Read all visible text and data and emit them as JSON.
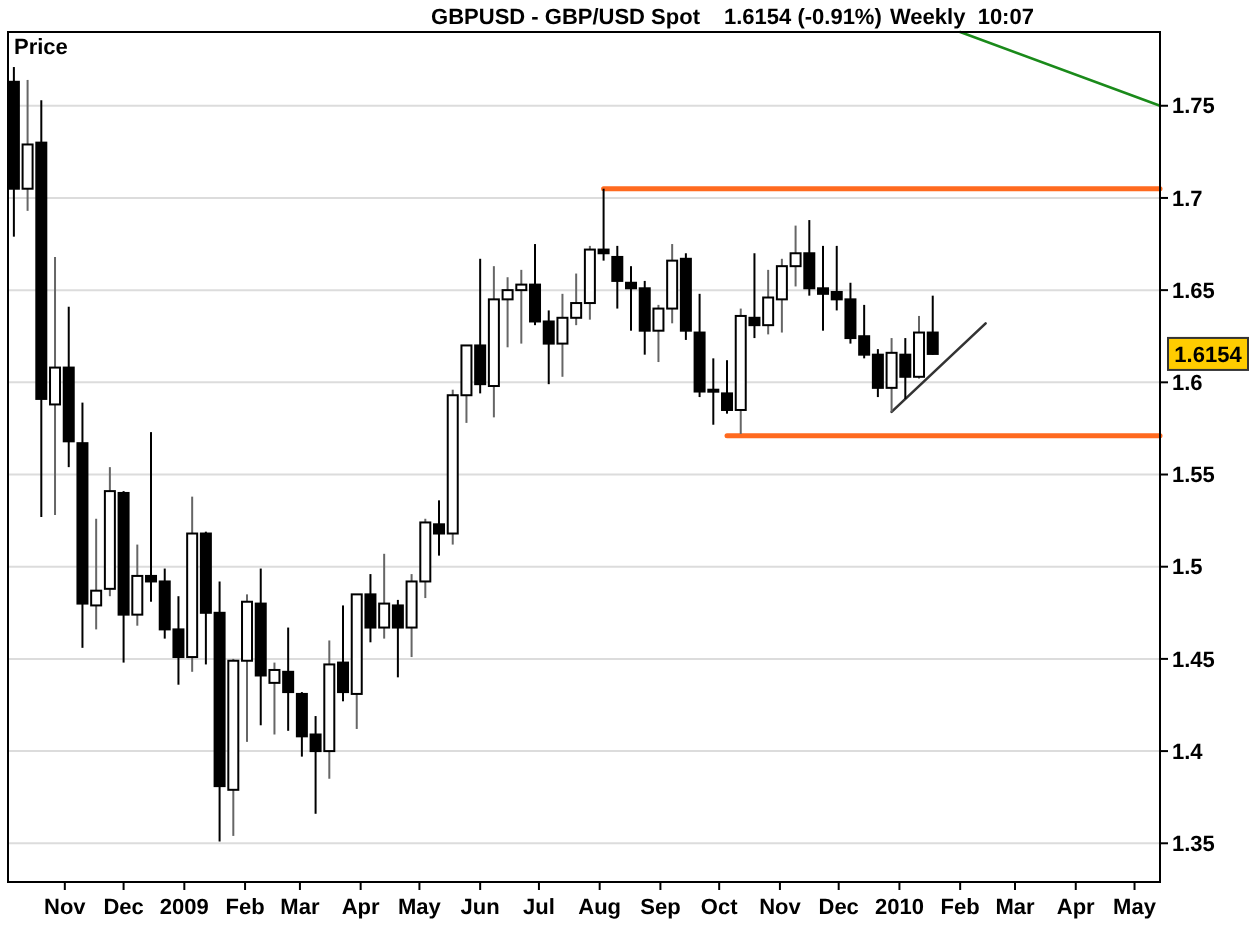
{
  "chart_data": {
    "type": "candlestick",
    "title": "GBPUSD - GBP/USD Spot",
    "subtitle": "1.6154 (-0.91%)",
    "ylabel": "Price",
    "annotations": [
      "Weekly  10:07",
      "1.6154"
    ],
    "x": [
      "2008-10-06",
      "2008-10-13",
      "2008-10-20",
      "2008-10-27",
      "2008-11-03",
      "2008-11-10",
      "2008-11-17",
      "2008-11-24",
      "2008-12-01",
      "2008-12-08",
      "2008-12-15",
      "2008-12-22",
      "2008-12-29",
      "2009-01-05",
      "2009-01-12",
      "2009-01-19",
      "2009-01-26",
      "2009-02-02",
      "2009-02-09",
      "2009-02-16",
      "2009-02-23",
      "2009-03-02",
      "2009-03-09",
      "2009-03-16",
      "2009-03-23",
      "2009-03-30",
      "2009-04-06",
      "2009-04-13",
      "2009-04-20",
      "2009-04-27",
      "2009-05-04",
      "2009-05-11",
      "2009-05-18",
      "2009-05-25",
      "2009-06-01",
      "2009-06-08",
      "2009-06-15",
      "2009-06-22",
      "2009-06-29",
      "2009-07-06",
      "2009-07-13",
      "2009-07-20",
      "2009-07-27",
      "2009-08-03",
      "2009-08-10",
      "2009-08-17",
      "2009-08-24",
      "2009-08-31",
      "2009-09-07",
      "2009-09-14",
      "2009-09-21",
      "2009-09-28",
      "2009-10-05",
      "2009-10-12",
      "2009-10-19",
      "2009-10-26",
      "2009-11-02",
      "2009-11-09",
      "2009-11-16",
      "2009-11-23",
      "2009-11-30",
      "2009-12-07",
      "2009-12-14",
      "2009-12-21",
      "2009-12-28",
      "2010-01-04",
      "2010-01-11",
      "2010-01-18"
    ],
    "ohlc": [
      [
        1.763,
        1.771,
        1.679,
        1.705
      ],
      [
        1.705,
        1.764,
        1.693,
        1.729
      ],
      [
        1.73,
        1.753,
        1.527,
        1.591
      ],
      [
        1.588,
        1.668,
        1.528,
        1.608
      ],
      [
        1.608,
        1.641,
        1.554,
        1.568
      ],
      [
        1.567,
        1.589,
        1.456,
        1.48
      ],
      [
        1.479,
        1.526,
        1.466,
        1.487
      ],
      [
        1.488,
        1.554,
        1.484,
        1.541
      ],
      [
        1.54,
        1.541,
        1.448,
        1.474
      ],
      [
        1.474,
        1.512,
        1.468,
        1.495
      ],
      [
        1.495,
        1.573,
        1.481,
        1.492
      ],
      [
        1.492,
        1.499,
        1.461,
        1.466
      ],
      [
        1.466,
        1.484,
        1.436,
        1.451
      ],
      [
        1.451,
        1.538,
        1.443,
        1.518
      ],
      [
        1.518,
        1.519,
        1.447,
        1.475
      ],
      [
        1.475,
        1.492,
        1.351,
        1.381
      ],
      [
        1.379,
        1.45,
        1.354,
        1.449
      ],
      [
        1.449,
        1.485,
        1.405,
        1.481
      ],
      [
        1.48,
        1.499,
        1.414,
        1.441
      ],
      [
        1.437,
        1.448,
        1.409,
        1.444
      ],
      [
        1.443,
        1.467,
        1.411,
        1.432
      ],
      [
        1.431,
        1.432,
        1.397,
        1.408
      ],
      [
        1.409,
        1.419,
        1.366,
        1.4
      ],
      [
        1.4,
        1.46,
        1.385,
        1.447
      ],
      [
        1.448,
        1.479,
        1.427,
        1.432
      ],
      [
        1.431,
        1.485,
        1.412,
        1.485
      ],
      [
        1.485,
        1.496,
        1.459,
        1.467
      ],
      [
        1.467,
        1.507,
        1.461,
        1.48
      ],
      [
        1.479,
        1.482,
        1.44,
        1.467
      ],
      [
        1.467,
        1.496,
        1.451,
        1.492
      ],
      [
        1.492,
        1.526,
        1.483,
        1.524
      ],
      [
        1.523,
        1.536,
        1.506,
        1.518
      ],
      [
        1.518,
        1.596,
        1.512,
        1.593
      ],
      [
        1.593,
        1.62,
        1.578,
        1.62
      ],
      [
        1.62,
        1.667,
        1.594,
        1.599
      ],
      [
        1.598,
        1.663,
        1.581,
        1.645
      ],
      [
        1.645,
        1.657,
        1.619,
        1.65
      ],
      [
        1.65,
        1.661,
        1.621,
        1.653
      ],
      [
        1.653,
        1.675,
        1.631,
        1.633
      ],
      [
        1.633,
        1.639,
        1.599,
        1.621
      ],
      [
        1.621,
        1.648,
        1.603,
        1.635
      ],
      [
        1.635,
        1.659,
        1.631,
        1.643
      ],
      [
        1.643,
        1.674,
        1.634,
        1.672
      ],
      [
        1.672,
        1.705,
        1.666,
        1.67
      ],
      [
        1.668,
        1.674,
        1.64,
        1.655
      ],
      [
        1.654,
        1.663,
        1.628,
        1.651
      ],
      [
        1.651,
        1.655,
        1.615,
        1.628
      ],
      [
        1.628,
        1.642,
        1.611,
        1.64
      ],
      [
        1.64,
        1.675,
        1.632,
        1.666
      ],
      [
        1.667,
        1.67,
        1.623,
        1.628
      ],
      [
        1.627,
        1.648,
        1.592,
        1.595
      ],
      [
        1.596,
        1.613,
        1.577,
        1.595
      ],
      [
        1.594,
        1.612,
        1.583,
        1.585
      ],
      [
        1.585,
        1.64,
        1.572,
        1.636
      ],
      [
        1.635,
        1.67,
        1.624,
        1.631
      ],
      [
        1.631,
        1.661,
        1.626,
        1.646
      ],
      [
        1.645,
        1.667,
        1.627,
        1.663
      ],
      [
        1.663,
        1.685,
        1.652,
        1.67
      ],
      [
        1.67,
        1.688,
        1.647,
        1.651
      ],
      [
        1.651,
        1.674,
        1.628,
        1.648
      ],
      [
        1.649,
        1.674,
        1.639,
        1.645
      ],
      [
        1.645,
        1.654,
        1.621,
        1.624
      ],
      [
        1.625,
        1.642,
        1.613,
        1.615
      ],
      [
        1.615,
        1.618,
        1.592,
        1.597
      ],
      [
        1.597,
        1.624,
        1.584,
        1.616
      ],
      [
        1.615,
        1.624,
        1.591,
        1.603
      ],
      [
        1.603,
        1.636,
        1.602,
        1.627
      ],
      [
        1.627,
        1.647,
        1.615,
        1.6154
      ]
    ],
    "series": [
      {
        "type": "line",
        "color": "#ff6a1f",
        "x": [
          "2009-08-03",
          "2010-05-14"
        ],
        "values": [
          1.705,
          1.705
        ]
      },
      {
        "type": "line",
        "color": "#ff6a1f",
        "x": [
          "2009-10-05",
          "2010-05-14"
        ],
        "values": [
          1.571,
          1.571
        ]
      },
      {
        "type": "line",
        "color": "#333333",
        "x": [
          "2009-12-28",
          "2010-02-14"
        ],
        "values": [
          1.584,
          1.632
        ]
      },
      {
        "type": "line",
        "color": "#1a8a1a",
        "x": [
          "2010-02-01",
          "2010-05-14"
        ],
        "values": [
          1.79,
          1.75
        ]
      }
    ],
    "xlim": [
      "2008-10-03",
      "2010-05-14"
    ],
    "xticks": [
      {
        "value": "2008-11-01",
        "label": "Nov"
      },
      {
        "value": "2008-12-01",
        "label": "Dec"
      },
      {
        "value": "2009-01-01",
        "label": "2009"
      },
      {
        "value": "2009-02-01",
        "label": "Feb"
      },
      {
        "value": "2009-03-01",
        "label": "Mar"
      },
      {
        "value": "2009-04-01",
        "label": "Apr"
      },
      {
        "value": "2009-05-01",
        "label": "May"
      },
      {
        "value": "2009-06-01",
        "label": "Jun"
      },
      {
        "value": "2009-07-01",
        "label": "Jul"
      },
      {
        "value": "2009-08-01",
        "label": "Aug"
      },
      {
        "value": "2009-09-01",
        "label": "Sep"
      },
      {
        "value": "2009-10-01",
        "label": "Oct"
      },
      {
        "value": "2009-11-01",
        "label": "Nov"
      },
      {
        "value": "2009-12-01",
        "label": "Dec"
      },
      {
        "value": "2010-01-01",
        "label": "2010"
      },
      {
        "value": "2010-02-01",
        "label": "Feb"
      },
      {
        "value": "2010-03-01",
        "label": "Mar"
      },
      {
        "value": "2010-04-01",
        "label": "Apr"
      },
      {
        "value": "2010-05-01",
        "label": "May"
      }
    ],
    "ylim": [
      1.329,
      1.79
    ],
    "yticks": [
      1.35,
      {
        "value": 1.4,
        "label": "1.4"
      },
      1.45,
      {
        "value": 1.5,
        "label": "1.5"
      },
      1.55,
      {
        "value": 1.6,
        "label": "1.6"
      },
      1.65,
      {
        "value": 1.7,
        "label": "1.7"
      },
      1.75
    ],
    "grid": "y"
  }
}
